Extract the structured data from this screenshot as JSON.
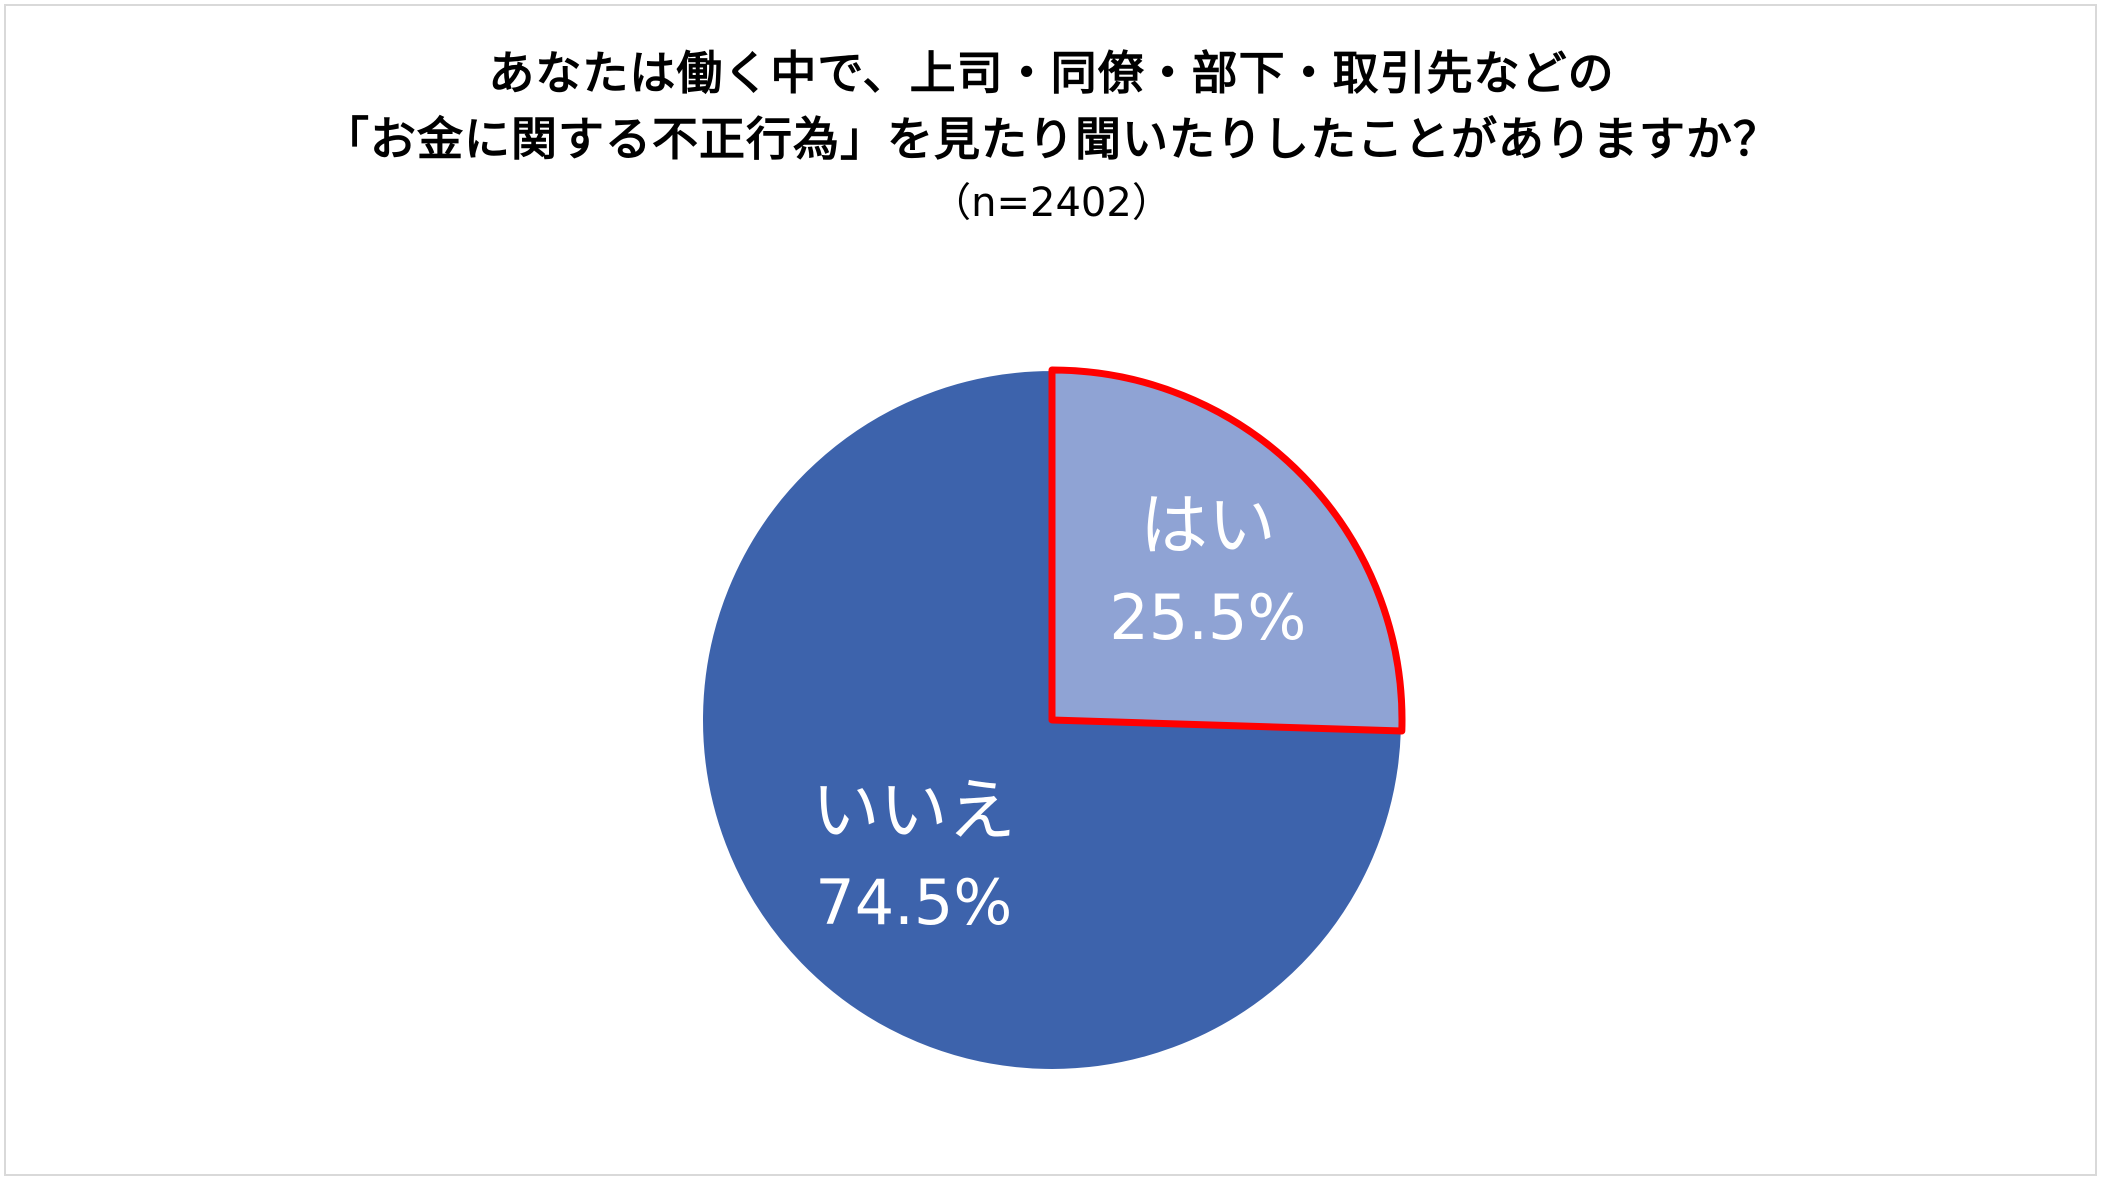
{
  "title": {
    "line1": "あなたは働く中で、上司・同僚・部下・取引先などの",
    "line2": "「お金に関する不正行為」を見たり聞いたりしたことがありますか？",
    "subtitle": "（n=2402）"
  },
  "chart_data": {
    "type": "pie",
    "title": "あなたは働く中で、上司・同僚・部下・取引先などの「お金に関する不正行為」を見たり聞いたりしたことがありますか？",
    "subtitle": "（n=2402）",
    "start": "12 o'clock",
    "direction": "clockwise",
    "legend": "none (labels inside slices)",
    "slices": [
      {
        "label": "はい",
        "value": 25.5,
        "value_label": "25.5%",
        "color": "#8FA3D4",
        "outline": "#FF0000",
        "highlighted": true
      },
      {
        "label": "いいえ",
        "value": 74.5,
        "value_label": "74.5%",
        "color": "#3D63AC",
        "outline": "#FFFFFF",
        "highlighted": false
      }
    ]
  }
}
